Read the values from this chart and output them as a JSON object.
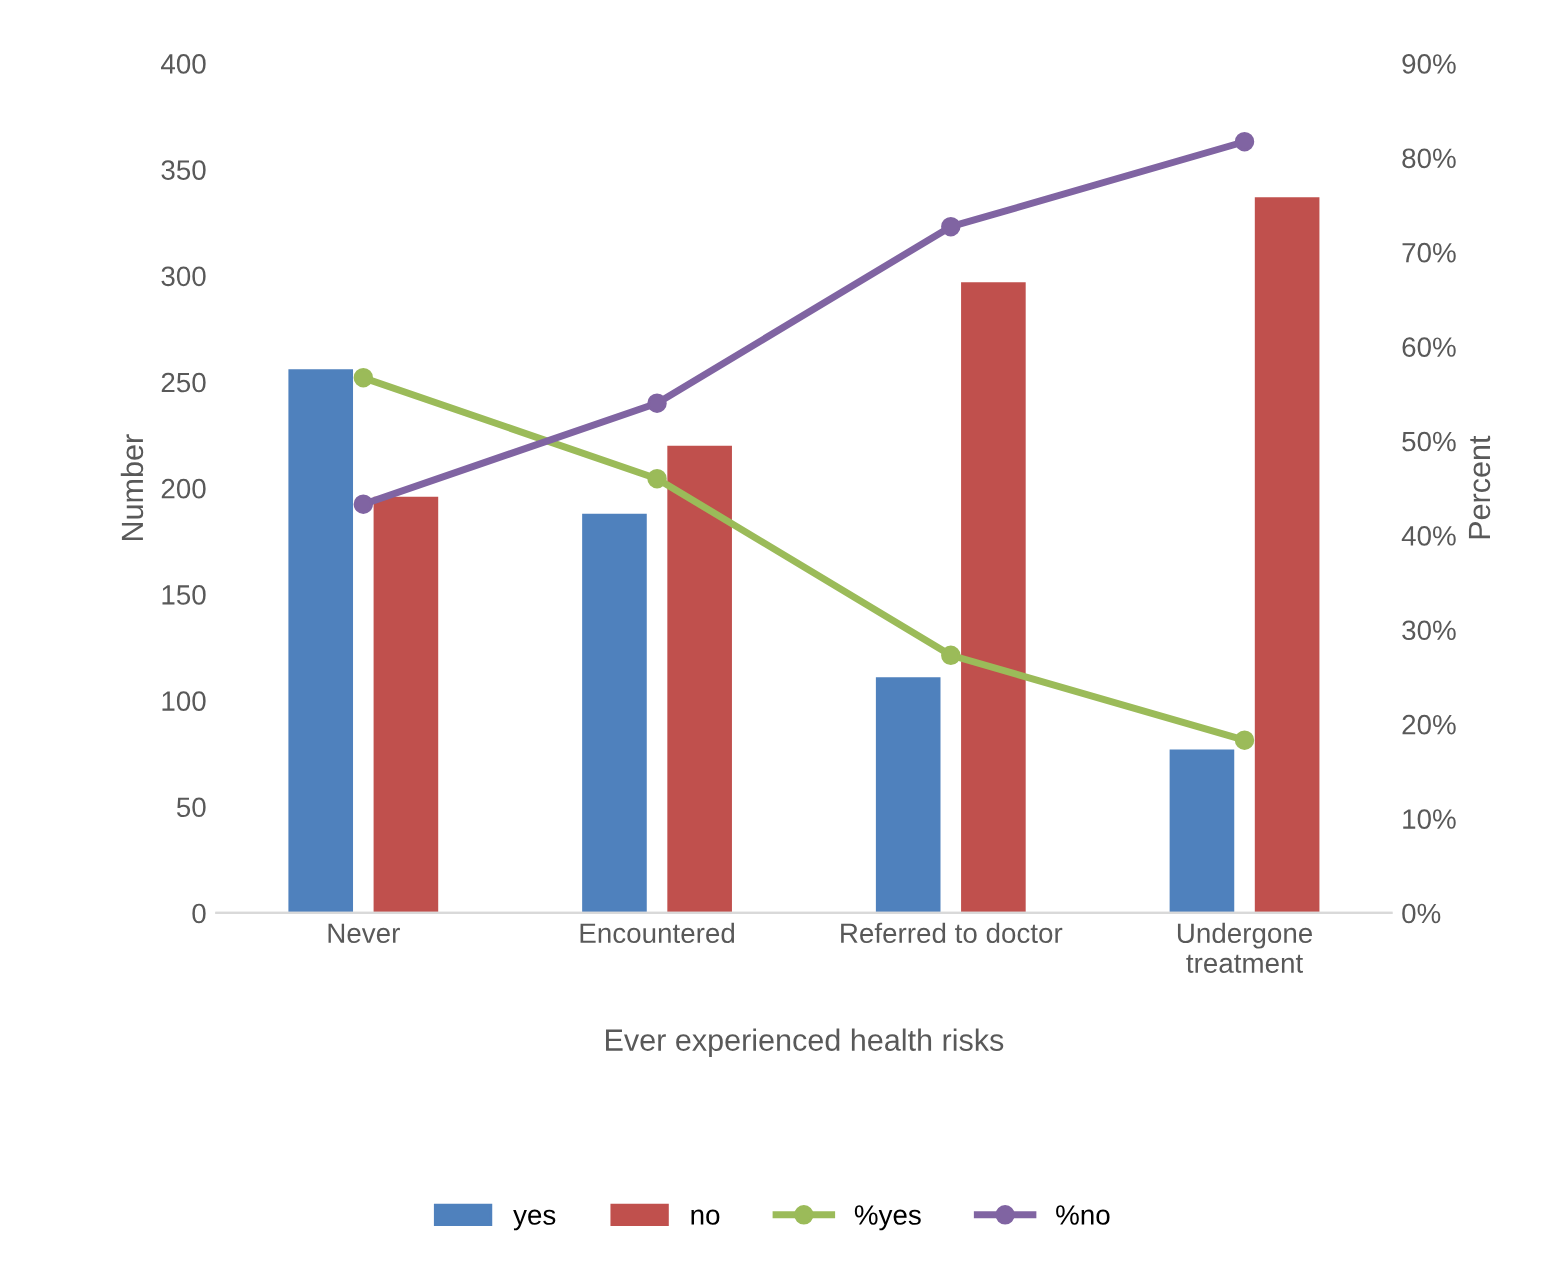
{
  "chart_data": {
    "type": "bar",
    "xlabel": "Ever experienced health risks",
    "ylabel": "Number",
    "y2label": "Percent",
    "categories": [
      "Never",
      "Encountered",
      "Referred to doctor",
      "Undergone\ntreatment"
    ],
    "series": [
      {
        "name": "yes",
        "color": "#4f81bd",
        "values": [
          256,
          188,
          111,
          77
        ]
      },
      {
        "name": "no",
        "color": "#c0504d",
        "values": [
          196,
          220,
          297,
          337
        ]
      },
      {
        "name": "%yes",
        "type": "line",
        "axis": "y2",
        "color": "#9bbb59",
        "marker": "circle",
        "values": [
          56.7,
          46,
          27.3,
          18.3
        ]
      },
      {
        "name": "%no",
        "type": "line",
        "axis": "y2",
        "color": "#8064a2",
        "marker": "circle",
        "values": [
          43.3,
          54,
          72.7,
          81.7
        ]
      }
    ],
    "ylim": [
      0,
      400
    ],
    "yticks": [
      0,
      50,
      100,
      150,
      200,
      250,
      300,
      350,
      400
    ],
    "y2lim": [
      0,
      90
    ],
    "y2ticks": [
      {
        "value": 0,
        "label": "0%"
      },
      {
        "value": 10,
        "label": "10%"
      },
      {
        "value": 20,
        "label": "20%"
      },
      {
        "value": 30,
        "label": "30%"
      },
      {
        "value": 40,
        "label": "40%"
      },
      {
        "value": 50,
        "label": "50%"
      },
      {
        "value": 60,
        "label": "60%"
      },
      {
        "value": 70,
        "label": "70%"
      },
      {
        "value": 80,
        "label": "80%"
      },
      {
        "value": 90,
        "label": "90%"
      }
    ],
    "grid": false,
    "legend": "bottom"
  }
}
